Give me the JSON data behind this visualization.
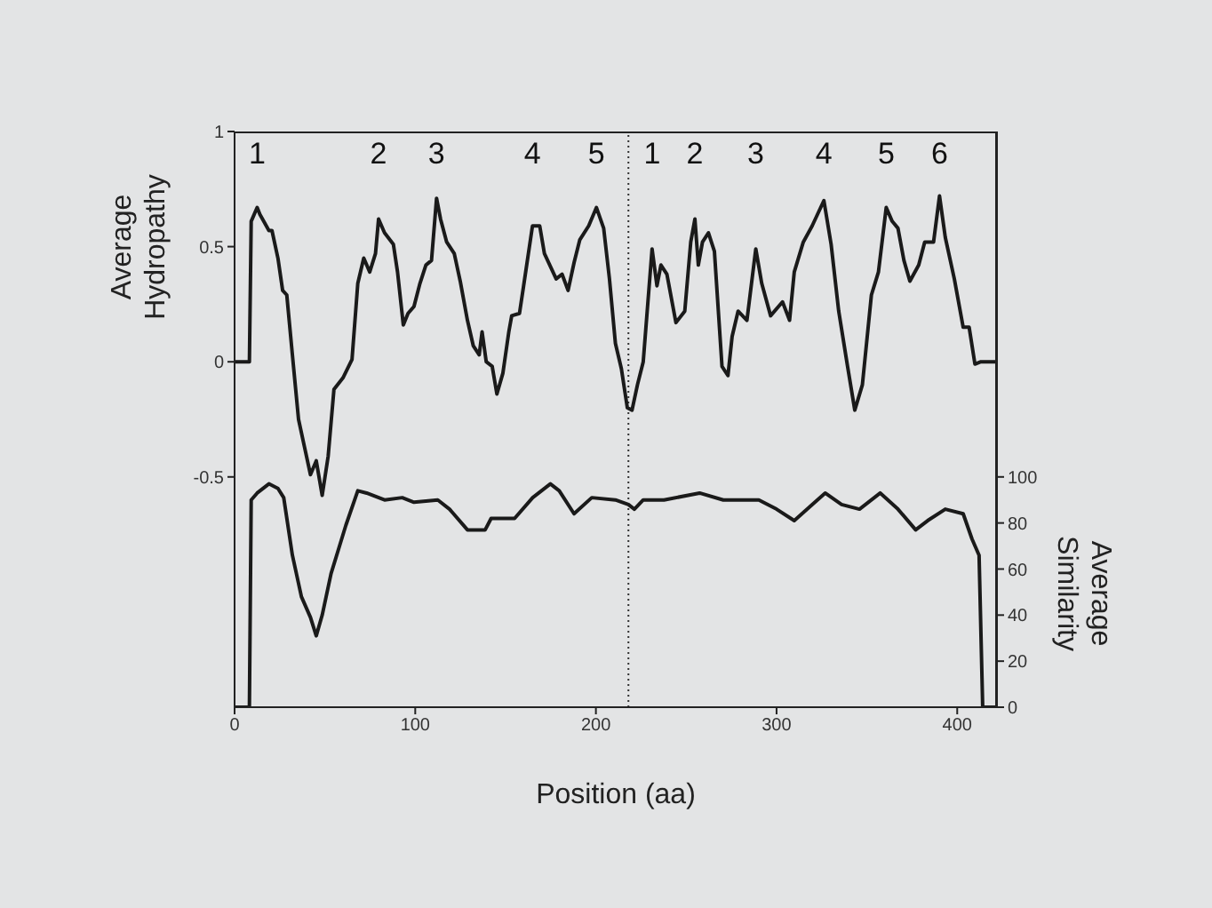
{
  "chart_data": {
    "type": "line",
    "xlabel": "Position (aa)",
    "ylabel": "Average Hydropathy",
    "y2label": "Average Similarity",
    "xlim": [
      0,
      422
    ],
    "xticks": [
      0,
      100,
      200,
      300,
      400
    ],
    "ylim": [
      -1.5,
      1
    ],
    "yticks": [
      -0.5,
      0,
      0.5,
      1
    ],
    "y2lim": [
      0,
      250
    ],
    "y2ticks": [
      0,
      20,
      40,
      60,
      80,
      100
    ],
    "series": [
      {
        "color": "#1a1a1a",
        "x": [
          0,
          8.2,
          9.2,
          12.5,
          14,
          19,
          20.7,
          24,
          26.6,
          28.9,
          32,
          35.4,
          38.7,
          42,
          45.2,
          48.5,
          51.8,
          55,
          60,
          65,
          68.2,
          71.5,
          74.8,
          78,
          79.7,
          83,
          87.9,
          90.2,
          93.4,
          96,
          99.3,
          102.6,
          105.9,
          109,
          111.8,
          114,
          117.4,
          121.6,
          124.9,
          128.9,
          132.1,
          135.4,
          137,
          139.3,
          142.6,
          145.2,
          148.5,
          151.8,
          153.4,
          157.7,
          160,
          164.9,
          168.9,
          171.5,
          178,
          181.3,
          184.6,
          187.9,
          191.1,
          196,
          200.3,
          204.3,
          207.5,
          210.8,
          214.1,
          217.4,
          220,
          223,
          226.2,
          231.1,
          233.8,
          236,
          239.3,
          244.3,
          249.2,
          252.5,
          254.8,
          256.7,
          259,
          262.3,
          265.6,
          269.8,
          273.1,
          275.4,
          278.7,
          283.6,
          288.5,
          291.8,
          296.7,
          303.3,
          307.2,
          309.8,
          314.8,
          319.7,
          326.2,
          330.2,
          334.4,
          339.3,
          343.3,
          347.5,
          352.5,
          356.4,
          360.7,
          364,
          367.2,
          370.5,
          373.8,
          378.7,
          382,
          386.9,
          390.2,
          393.4,
          398.4,
          403.3,
          406.6,
          409.8,
          413.1,
          421.3
        ],
        "values": [
          0,
          0,
          0.61,
          0.67,
          0.64,
          0.57,
          0.57,
          0.45,
          0.31,
          0.29,
          0.03,
          -0.25,
          -0.37,
          -0.49,
          -0.43,
          -0.58,
          -0.41,
          -0.12,
          -0.07,
          0.01,
          0.34,
          0.45,
          0.39,
          0.47,
          0.62,
          0.56,
          0.51,
          0.39,
          0.16,
          0.21,
          0.24,
          0.34,
          0.42,
          0.44,
          0.71,
          0.62,
          0.52,
          0.47,
          0.35,
          0.18,
          0.07,
          0.03,
          0.13,
          0,
          -0.02,
          -0.14,
          -0.05,
          0.13,
          0.2,
          0.21,
          0.33,
          0.59,
          0.59,
          0.47,
          0.36,
          0.38,
          0.31,
          0.43,
          0.53,
          0.59,
          0.67,
          0.58,
          0.36,
          0.08,
          -0.03,
          -0.2,
          -0.21,
          -0.1,
          0,
          0.49,
          0.33,
          0.42,
          0.38,
          0.17,
          0.22,
          0.52,
          0.62,
          0.42,
          0.52,
          0.56,
          0.48,
          -0.02,
          -0.06,
          0.11,
          0.22,
          0.18,
          0.49,
          0.34,
          0.2,
          0.26,
          0.18,
          0.39,
          0.52,
          0.59,
          0.7,
          0.51,
          0.22,
          -0.02,
          -0.21,
          -0.1,
          0.29,
          0.39,
          0.67,
          0.61,
          0.58,
          0.44,
          0.35,
          0.42,
          0.52,
          0.52,
          0.72,
          0.54,
          0.36,
          0.15,
          0.15,
          -0.01,
          0,
          0
        ]
      },
      {
        "color": "#1a1a1a",
        "axis": "y2",
        "x": [
          0,
          8.2,
          9.2,
          12.5,
          19,
          24,
          27.2,
          32,
          37,
          42,
          45.2,
          48.5,
          53.4,
          61.6,
          68.2,
          73.1,
          83,
          92.8,
          99.3,
          112.5,
          119,
          128.9,
          138.7,
          142,
          155,
          165,
          174.8,
          179.7,
          187.9,
          197.7,
          210.8,
          218,
          221.3,
          226.2,
          237.7,
          257.4,
          270.5,
          290.2,
          300,
          309.8,
          319.7,
          326.9,
          336,
          345.9,
          357.4,
          367.2,
          377,
          383.6,
          393.4,
          403.3,
          408.2,
          412.1,
          414.1,
          421.3
        ],
        "values": [
          0,
          0,
          90,
          93,
          97,
          95,
          91,
          66,
          48,
          39,
          31,
          40,
          58,
          79,
          94,
          93,
          90,
          91,
          89,
          90,
          86,
          77,
          77,
          82,
          82,
          91,
          97,
          94,
          84,
          91,
          90,
          88,
          86,
          90,
          90,
          93,
          90,
          90,
          86,
          81,
          88,
          93,
          88,
          86,
          93,
          86,
          77,
          81,
          86,
          84,
          73,
          66,
          0,
          0
        ]
      }
    ],
    "ref_lines": [
      {
        "axis": "x",
        "value": 218,
        "color": "#333333",
        "line_style": "dotted"
      }
    ],
    "annotations": [
      "1",
      "2",
      "3",
      "4",
      "5",
      "1",
      "2",
      "3",
      "4",
      "5",
      "6"
    ]
  }
}
